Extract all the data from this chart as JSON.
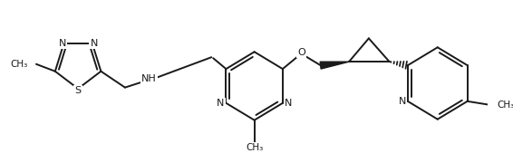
{
  "bg_color": "#ffffff",
  "line_color": "#1a1a1a",
  "line_width": 1.4,
  "figsize": [
    5.66,
    1.8
  ],
  "dpi": 100,
  "xlim": [
    0,
    566
  ],
  "ylim": [
    0,
    180
  ]
}
